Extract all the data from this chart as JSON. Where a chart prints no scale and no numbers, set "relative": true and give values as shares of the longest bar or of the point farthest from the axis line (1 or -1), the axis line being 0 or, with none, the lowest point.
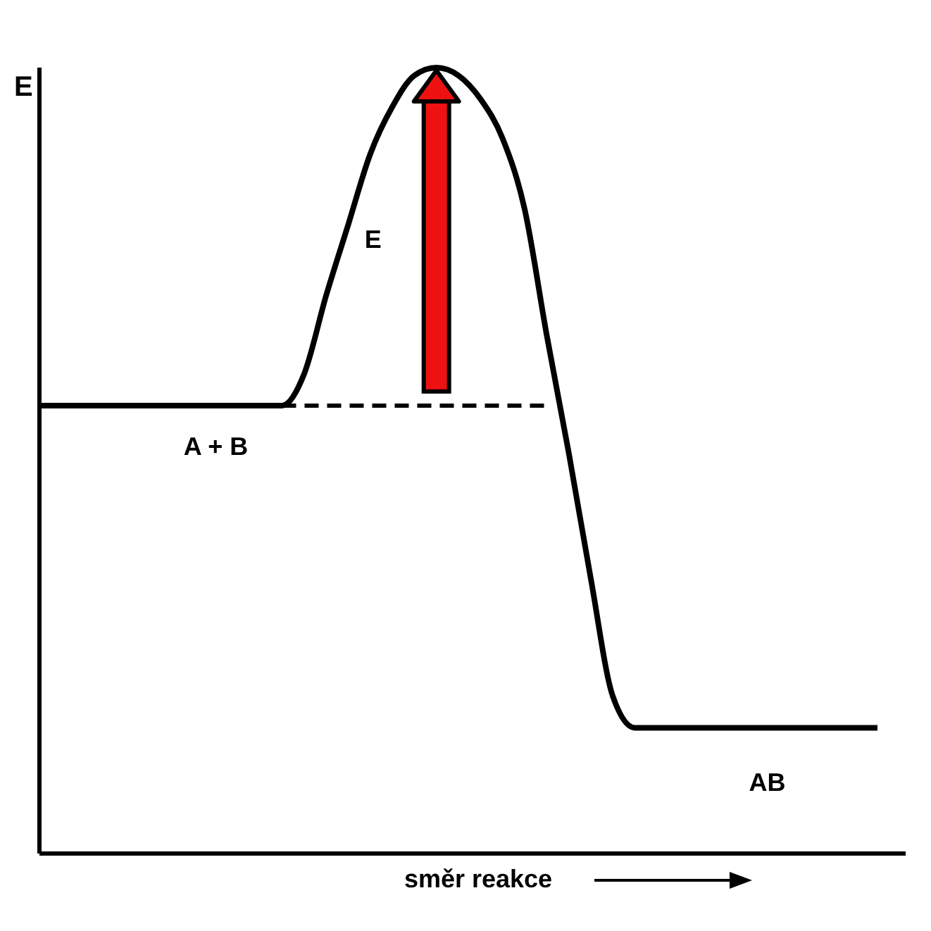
{
  "chart_data": {
    "type": "line",
    "relative": true,
    "ylabel": "E",
    "xlabel": "směr reakce",
    "categories": [
      null,
      null,
      null,
      null,
      null,
      null,
      null,
      null,
      null,
      null,
      null,
      null,
      null,
      null,
      null,
      null,
      null,
      null,
      null,
      null,
      null,
      null,
      null,
      null,
      null,
      null,
      null,
      null,
      null,
      null,
      null,
      null,
      null,
      null,
      null,
      null,
      null,
      null,
      null
    ],
    "series": [
      {
        "color": "#000000",
        "line_style": "solid",
        "values": [
          0.57,
          0.57,
          0.57,
          0.57,
          0.57,
          0.57,
          0.57,
          0.57,
          0.57,
          0.57,
          0.57,
          0.57,
          0.61,
          0.71,
          0.8,
          0.89,
          0.95,
          0.99,
          1,
          0.99,
          0.96,
          0.91,
          0.82,
          0.66,
          0.51,
          0.35,
          0.2,
          0.16,
          0.16,
          0.16,
          0.16,
          0.16,
          0.16,
          0.16,
          0.16,
          0.16,
          0.16,
          0.16,
          0.16
        ]
      },
      {
        "color": "#000000",
        "line_style": "dashed",
        "values": [
          null,
          null,
          null,
          null,
          null,
          null,
          null,
          null,
          null,
          null,
          null,
          0.57,
          0.57,
          0.57,
          0.57,
          0.57,
          0.57,
          0.57,
          0.57,
          0.57,
          0.57,
          0.57,
          0.57,
          0.57,
          null,
          null,
          null,
          null,
          null,
          null,
          null,
          null,
          null,
          null,
          null,
          null,
          null,
          null,
          null
        ]
      }
    ],
    "annotations": [
      "E",
      "A + B",
      "AB"
    ],
    "marker": "none"
  }
}
